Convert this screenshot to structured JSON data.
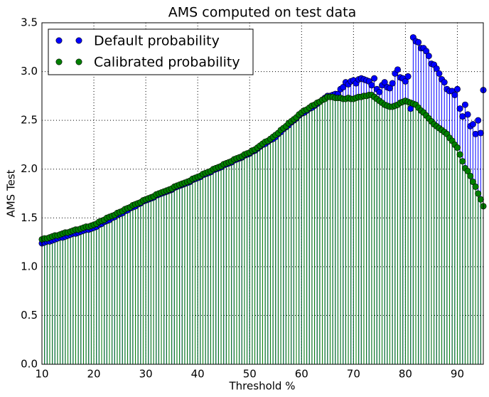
{
  "chart_data": {
    "type": "stem",
    "title": "AMS computed on test data",
    "x_label": "Threshold %",
    "y_label": "AMS Test",
    "xlim": [
      10,
      95
    ],
    "xticks": [
      10,
      20,
      30,
      40,
      50,
      60,
      70,
      80,
      90
    ],
    "ylim": [
      0,
      3.5
    ],
    "yticks": [
      {
        "value": 0,
        "label": "0.0"
      },
      0.5,
      {
        "value": 1,
        "label": "1.0"
      },
      1.5,
      {
        "value": 2,
        "label": "2.0"
      },
      2.5,
      {
        "value": 3,
        "label": "3.0"
      },
      3.5
    ],
    "grid": true,
    "legend": "upper left",
    "x": [
      10,
      10.5,
      11,
      11.5,
      12,
      12.5,
      13,
      13.5,
      14,
      14.5,
      15,
      15.5,
      16,
      16.5,
      17,
      17.5,
      18,
      18.5,
      19,
      19.5,
      20,
      20.5,
      21,
      21.5,
      22,
      22.5,
      23,
      23.5,
      24,
      24.5,
      25,
      25.5,
      26,
      26.5,
      27,
      27.5,
      28,
      28.5,
      29,
      29.5,
      30,
      30.5,
      31,
      31.5,
      32,
      32.5,
      33,
      33.5,
      34,
      34.5,
      35,
      35.5,
      36,
      36.5,
      37,
      37.5,
      38,
      38.5,
      39,
      39.5,
      40,
      40.5,
      41,
      41.5,
      42,
      42.5,
      43,
      43.5,
      44,
      44.5,
      45,
      45.5,
      46,
      46.5,
      47,
      47.5,
      48,
      48.5,
      49,
      49.5,
      50,
      50.5,
      51,
      51.5,
      52,
      52.5,
      53,
      53.5,
      54,
      54.5,
      55,
      55.5,
      56,
      56.5,
      57,
      57.5,
      58,
      58.5,
      59,
      59.5,
      60,
      60.5,
      61,
      61.5,
      62,
      62.5,
      63,
      63.5,
      64,
      64.5,
      65,
      65.5,
      66,
      66.5,
      67,
      67.5,
      68,
      68.5,
      69,
      69.5,
      70,
      70.5,
      71,
      71.5,
      72,
      72.5,
      73,
      73.5,
      74,
      74.5,
      75,
      75.5,
      76,
      76.5,
      77,
      77.5,
      78,
      78.5,
      79,
      79.5,
      80,
      80.5,
      81,
      81.5,
      82,
      82.5,
      83,
      83.5,
      84,
      84.5,
      85,
      85.5,
      86,
      86.5,
      87,
      87.5,
      88,
      88.5,
      89,
      89.5,
      90,
      90.5,
      91,
      91.5,
      92,
      92.5,
      93,
      93.5,
      94,
      94.5,
      95
    ],
    "series": [
      {
        "name": "Default probability",
        "color": "#0000ff",
        "values": [
          1.24,
          1.25,
          1.26,
          1.26,
          1.27,
          1.28,
          1.29,
          1.3,
          1.3,
          1.31,
          1.32,
          1.33,
          1.34,
          1.34,
          1.35,
          1.36,
          1.37,
          1.38,
          1.38,
          1.39,
          1.4,
          1.41,
          1.43,
          1.44,
          1.46,
          1.47,
          1.48,
          1.5,
          1.51,
          1.53,
          1.54,
          1.55,
          1.57,
          1.58,
          1.6,
          1.61,
          1.62,
          1.64,
          1.65,
          1.67,
          1.68,
          1.69,
          1.7,
          1.71,
          1.73,
          1.74,
          1.75,
          1.76,
          1.77,
          1.78,
          1.79,
          1.81,
          1.82,
          1.83,
          1.84,
          1.85,
          1.86,
          1.87,
          1.89,
          1.9,
          1.91,
          1.92,
          1.94,
          1.95,
          1.96,
          1.97,
          1.99,
          2.0,
          2.01,
          2.02,
          2.04,
          2.05,
          2.06,
          2.07,
          2.09,
          2.1,
          2.11,
          2.12,
          2.14,
          2.15,
          2.16,
          2.18,
          2.19,
          2.21,
          2.23,
          2.25,
          2.26,
          2.28,
          2.3,
          2.31,
          2.33,
          2.36,
          2.38,
          2.41,
          2.43,
          2.45,
          2.48,
          2.5,
          2.52,
          2.55,
          2.57,
          2.58,
          2.6,
          2.62,
          2.63,
          2.65,
          2.67,
          2.69,
          2.71,
          2.73,
          2.75,
          2.75,
          2.76,
          2.77,
          2.77,
          2.82,
          2.84,
          2.89,
          2.87,
          2.9,
          2.91,
          2.88,
          2.92,
          2.93,
          2.92,
          2.91,
          2.9,
          2.86,
          2.93,
          2.82,
          2.79,
          2.86,
          2.89,
          2.84,
          2.83,
          2.88,
          2.98,
          3.02,
          2.94,
          2.93,
          2.9,
          2.95,
          2.62,
          3.35,
          3.31,
          3.3,
          3.24,
          3.24,
          3.21,
          3.16,
          3.08,
          3.07,
          3.03,
          2.98,
          2.92,
          2.89,
          2.82,
          2.8,
          2.8,
          2.76,
          2.82,
          2.62,
          2.54,
          2.66,
          2.56,
          2.44,
          2.46,
          2.36,
          2.5,
          2.37,
          2.81
        ]
      },
      {
        "name": "Calibrated probability",
        "color": "#007f00",
        "values": [
          1.28,
          1.29,
          1.29,
          1.3,
          1.31,
          1.32,
          1.32,
          1.33,
          1.34,
          1.35,
          1.35,
          1.36,
          1.37,
          1.38,
          1.38,
          1.39,
          1.4,
          1.41,
          1.41,
          1.42,
          1.43,
          1.44,
          1.46,
          1.47,
          1.48,
          1.5,
          1.51,
          1.52,
          1.53,
          1.55,
          1.56,
          1.57,
          1.59,
          1.6,
          1.61,
          1.63,
          1.64,
          1.65,
          1.66,
          1.68,
          1.69,
          1.7,
          1.71,
          1.72,
          1.74,
          1.75,
          1.76,
          1.77,
          1.78,
          1.79,
          1.8,
          1.82,
          1.83,
          1.84,
          1.85,
          1.86,
          1.87,
          1.88,
          1.9,
          1.91,
          1.92,
          1.93,
          1.95,
          1.96,
          1.97,
          1.98,
          2.0,
          2.01,
          2.02,
          2.03,
          2.05,
          2.06,
          2.07,
          2.08,
          2.1,
          2.11,
          2.12,
          2.13,
          2.15,
          2.16,
          2.17,
          2.19,
          2.2,
          2.22,
          2.24,
          2.26,
          2.28,
          2.29,
          2.31,
          2.33,
          2.35,
          2.37,
          2.4,
          2.42,
          2.44,
          2.47,
          2.49,
          2.51,
          2.53,
          2.56,
          2.58,
          2.6,
          2.61,
          2.63,
          2.65,
          2.66,
          2.68,
          2.69,
          2.71,
          2.72,
          2.74,
          2.74,
          2.74,
          2.73,
          2.73,
          2.73,
          2.72,
          2.72,
          2.73,
          2.72,
          2.72,
          2.73,
          2.74,
          2.74,
          2.75,
          2.75,
          2.76,
          2.76,
          2.74,
          2.72,
          2.7,
          2.68,
          2.66,
          2.65,
          2.64,
          2.64,
          2.65,
          2.66,
          2.68,
          2.69,
          2.7,
          2.69,
          2.68,
          2.67,
          2.66,
          2.63,
          2.6,
          2.58,
          2.55,
          2.52,
          2.49,
          2.46,
          2.44,
          2.42,
          2.4,
          2.38,
          2.36,
          2.32,
          2.29,
          2.25,
          2.22,
          2.15,
          2.08,
          2.01,
          1.98,
          1.93,
          1.87,
          1.82,
          1.75,
          1.69,
          1.62
        ]
      }
    ]
  }
}
